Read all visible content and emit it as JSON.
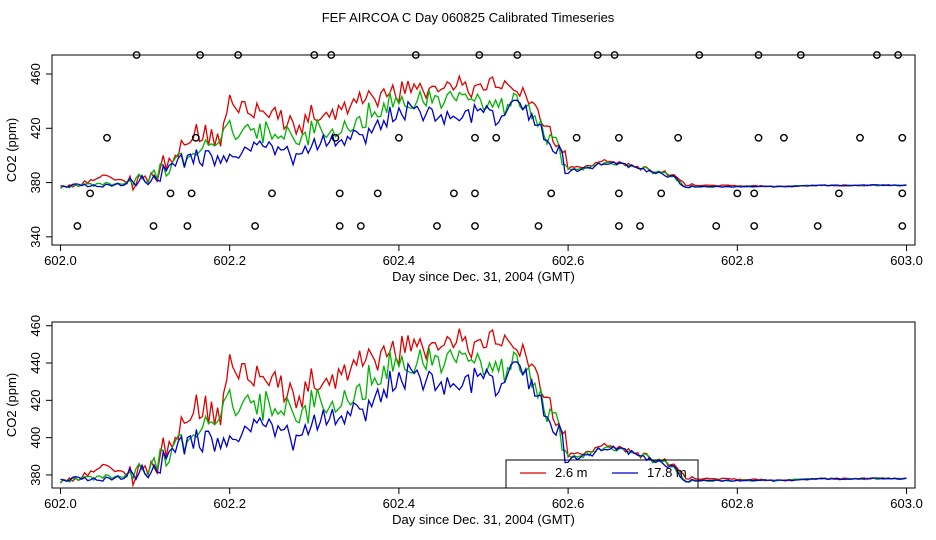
{
  "chart_data": {
    "type": "line",
    "title": "FEF AIRCOA C  Day 060825  Calibrated Timeseries",
    "colors": {
      "red": "#e00000",
      "green": "#00b400",
      "blue": "#0000d0",
      "frame": "#000000"
    },
    "x_knots": [
      602.0,
      602.02,
      602.05,
      602.08,
      602.1,
      602.13,
      602.16,
      602.19,
      602.2,
      602.25,
      602.28,
      602.3,
      602.33,
      602.35,
      602.38,
      602.4,
      602.43,
      602.45,
      602.48,
      602.5,
      602.52,
      602.54,
      602.56,
      602.58,
      602.6,
      602.62,
      602.65,
      602.68,
      602.7,
      602.72,
      602.74,
      602.78,
      602.85,
      602.9,
      603.0
    ],
    "series": [
      {
        "name": "2.6 m",
        "color": "#e00000",
        "values": [
          377,
          378,
          385,
          380,
          381,
          398,
          415,
          412,
          436,
          432,
          420,
          430,
          434,
          437,
          445,
          446,
          450,
          447,
          450,
          452,
          450,
          452,
          438,
          418,
          391,
          392,
          396,
          392,
          389,
          386,
          378,
          378,
          377,
          378,
          378
        ]
      },
      {
        "name": "",
        "color": "#00b400",
        "values": [
          377,
          378,
          379,
          380,
          381,
          394,
          404,
          410,
          420,
          416,
          410,
          418,
          420,
          423,
          438,
          438,
          442,
          440,
          438,
          440,
          436,
          438,
          428,
          413,
          390,
          391,
          395,
          391,
          388,
          385,
          377,
          377,
          377,
          378,
          378
        ]
      },
      {
        "name": "17.8 m",
        "color": "#0000d0",
        "values": [
          377,
          378,
          378,
          379,
          381,
          392,
          398,
          400,
          404,
          406,
          400,
          408,
          412,
          414,
          425,
          432,
          434,
          430,
          430,
          432,
          428,
          436,
          426,
          410,
          388,
          390,
          395,
          391,
          387,
          385,
          377,
          377,
          377,
          378,
          378
        ]
      }
    ],
    "panels": [
      {
        "xlabel": "Day since Dec. 31, 2004 (GMT)",
        "ylabel": "CO2 (ppm)",
        "xlim": [
          601.99,
          603.01
        ],
        "ylim": [
          334,
          474
        ],
        "xticks": [
          602.0,
          602.2,
          602.4,
          602.6,
          602.8,
          603.0
        ],
        "xtick_labels": [
          "602.0",
          "602.2",
          "602.4",
          "602.6",
          "602.8",
          "603.0"
        ],
        "yticks": [
          340,
          380,
          420,
          460
        ],
        "ytick_labels": [
          "340",
          "380",
          "420",
          "460"
        ],
        "show_markers": true,
        "show_legend": false
      },
      {
        "xlabel": "Day since Dec. 31, 2004 (GMT)",
        "ylabel": "CO2 (ppm)",
        "xlim": [
          601.99,
          603.01
        ],
        "ylim": [
          373,
          462
        ],
        "xticks": [
          602.0,
          602.2,
          602.4,
          602.6,
          602.8,
          603.0
        ],
        "xtick_labels": [
          "602.0",
          "602.2",
          "602.4",
          "602.6",
          "602.8",
          "603.0"
        ],
        "yticks": [
          380,
          400,
          420,
          440,
          460
        ],
        "ytick_labels": [
          "380",
          "400",
          "420",
          "440",
          "460"
        ],
        "show_markers": false,
        "show_legend": true
      }
    ],
    "markers": {
      "symbol": "open-circle",
      "points": [
        [
          602.02,
          348
        ],
        [
          602.035,
          372
        ],
        [
          602.055,
          413
        ],
        [
          602.09,
          474
        ],
        [
          602.11,
          348
        ],
        [
          602.13,
          372
        ],
        [
          602.15,
          348
        ],
        [
          602.155,
          372
        ],
        [
          602.16,
          413
        ],
        [
          602.165,
          474
        ],
        [
          602.21,
          474
        ],
        [
          602.23,
          348
        ],
        [
          602.25,
          372
        ],
        [
          602.3,
          474
        ],
        [
          602.32,
          474
        ],
        [
          602.325,
          413
        ],
        [
          602.33,
          372
        ],
        [
          602.33,
          348
        ],
        [
          602.355,
          348
        ],
        [
          602.375,
          372
        ],
        [
          602.4,
          413
        ],
        [
          602.42,
          474
        ],
        [
          602.445,
          348
        ],
        [
          602.465,
          372
        ],
        [
          602.49,
          372
        ],
        [
          602.49,
          348
        ],
        [
          602.49,
          413
        ],
        [
          602.495,
          474
        ],
        [
          602.515,
          413
        ],
        [
          602.54,
          474
        ],
        [
          602.565,
          348
        ],
        [
          602.58,
          372
        ],
        [
          602.61,
          413
        ],
        [
          602.635,
          474
        ],
        [
          602.655,
          474
        ],
        [
          602.66,
          413
        ],
        [
          602.66,
          372
        ],
        [
          602.66,
          348
        ],
        [
          602.685,
          348
        ],
        [
          602.71,
          372
        ],
        [
          602.73,
          413
        ],
        [
          602.755,
          474
        ],
        [
          602.775,
          348
        ],
        [
          602.8,
          372
        ],
        [
          602.82,
          372
        ],
        [
          602.82,
          348
        ],
        [
          602.825,
          413
        ],
        [
          602.825,
          474
        ],
        [
          602.855,
          413
        ],
        [
          602.875,
          474
        ],
        [
          602.895,
          348
        ],
        [
          602.92,
          372
        ],
        [
          602.945,
          413
        ],
        [
          602.965,
          474
        ],
        [
          602.99,
          474
        ],
        [
          602.995,
          413
        ],
        [
          602.995,
          372
        ],
        [
          602.995,
          348
        ]
      ]
    }
  }
}
